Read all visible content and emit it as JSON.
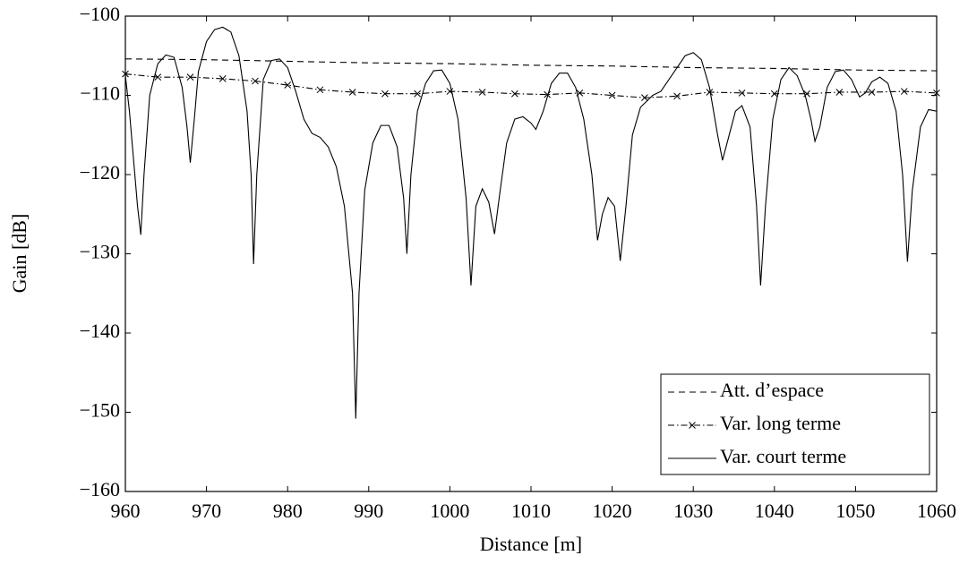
{
  "chart_data": {
    "type": "line",
    "xlabel": "Distance [m]",
    "ylabel": "Gain [dB]",
    "xlim": [
      960,
      1060
    ],
    "ylim": [
      -160,
      -100
    ],
    "xticks": [
      960,
      970,
      980,
      990,
      1000,
      1010,
      1020,
      1030,
      1040,
      1050,
      1060
    ],
    "yticks": [
      {
        "value": -160,
        "label": "−160"
      },
      {
        "value": -150,
        "label": "−150"
      },
      {
        "value": -140,
        "label": "−140"
      },
      {
        "value": -130,
        "label": "−130"
      },
      {
        "value": -120,
        "label": "−120"
      },
      {
        "value": -110,
        "label": "−110"
      },
      {
        "value": -100,
        "label": "−100"
      }
    ],
    "legend": "lower right",
    "series": [
      {
        "name": "Att. d’espace",
        "color": "#000000",
        "linestyle": "dashed",
        "x": [
          960,
          970,
          980,
          990,
          1000,
          1010,
          1020,
          1030,
          1040,
          1050,
          1060
        ],
        "values": [
          -105.4,
          -105.5,
          -105.7,
          -105.9,
          -106.0,
          -106.2,
          -106.3,
          -106.5,
          -106.6,
          -106.8,
          -106.9
        ]
      },
      {
        "name": "Var. long terme",
        "color": "#000000",
        "linestyle": "dashdot",
        "marker": "x",
        "x": [
          960,
          964,
          968,
          972,
          976,
          980,
          984,
          988,
          992,
          996,
          1000,
          1004,
          1008,
          1012,
          1016,
          1020,
          1024,
          1028,
          1032,
          1036,
          1040,
          1044,
          1048,
          1052,
          1056,
          1060
        ],
        "values": [
          -107.3,
          -107.7,
          -107.7,
          -107.9,
          -108.2,
          -108.7,
          -109.3,
          -109.6,
          -109.8,
          -109.8,
          -109.5,
          -109.6,
          -109.8,
          -109.9,
          -109.7,
          -110.0,
          -110.3,
          -110.1,
          -109.6,
          -109.7,
          -109.8,
          -109.8,
          -109.6,
          -109.6,
          -109.5,
          -109.7
        ]
      },
      {
        "name": "Var. court terme",
        "color": "#000000",
        "linestyle": "solid",
        "x": [
          960,
          960.5,
          961,
          961.5,
          961.9,
          962.3,
          963,
          964,
          965,
          966,
          967,
          967.6,
          968,
          968.5,
          969,
          970,
          971,
          972,
          973,
          974,
          975,
          975.5,
          975.8,
          976.2,
          977,
          978,
          979,
          980,
          981,
          982,
          983,
          984,
          985,
          986,
          987,
          988,
          988.4,
          988.8,
          989.5,
          990.5,
          991.5,
          992.5,
          993.5,
          994.3,
          994.7,
          995.2,
          996,
          997,
          998,
          999,
          1000,
          1001,
          1002,
          1002.6,
          1003.2,
          1004,
          1004.8,
          1005.5,
          1006.2,
          1007,
          1008,
          1009,
          1010,
          1010.6,
          1011.5,
          1012.5,
          1013.5,
          1014.5,
          1015.5,
          1016.5,
          1017.5,
          1018.2,
          1018.8,
          1019.5,
          1020.3,
          1021,
          1021.7,
          1022.5,
          1023.5,
          1025,
          1026,
          1027,
          1028,
          1029,
          1030,
          1031,
          1032,
          1033,
          1033.6,
          1034.3,
          1035.2,
          1036,
          1037,
          1037.8,
          1038.3,
          1038.9,
          1039.8,
          1040.8,
          1041.8,
          1042.8,
          1043.8,
          1044.5,
          1045,
          1045.6,
          1046.5,
          1047.5,
          1048.5,
          1049.5,
          1050.5,
          1051.2,
          1052,
          1053,
          1054,
          1055,
          1055.8,
          1056.4,
          1057,
          1058,
          1059,
          1060
        ],
        "values": [
          -107.5,
          -112,
          -118,
          -124,
          -127.6,
          -120,
          -110,
          -106,
          -104.9,
          -105.2,
          -109,
          -114,
          -118.5,
          -113,
          -107,
          -103.2,
          -101.7,
          -101.4,
          -102,
          -105,
          -112,
          -120,
          -131.3,
          -120,
          -108,
          -105.6,
          -105.4,
          -106.5,
          -109.5,
          -113,
          -114.8,
          -115.3,
          -116.5,
          -119,
          -124,
          -135,
          -150.8,
          -135,
          -122,
          -116,
          -113.8,
          -113.8,
          -116.5,
          -123,
          -130,
          -120,
          -112,
          -108.5,
          -106.9,
          -106.8,
          -108.5,
          -113,
          -123,
          -134,
          -124,
          -121.8,
          -123.5,
          -127.5,
          -122,
          -116,
          -113,
          -112.7,
          -113.5,
          -114.3,
          -112,
          -108.5,
          -107.2,
          -107.2,
          -109,
          -113,
          -120,
          -128.3,
          -125,
          -122.9,
          -124,
          -130.9,
          -124,
          -115,
          -111.5,
          -110,
          -109.5,
          -108,
          -106.5,
          -105,
          -104.6,
          -105.5,
          -109,
          -115,
          -118.2,
          -115.5,
          -112,
          -111.3,
          -114,
          -124,
          -134,
          -124,
          -113,
          -108,
          -106.5,
          -107.5,
          -110,
          -113,
          -115.8,
          -114,
          -109,
          -107,
          -106.8,
          -108,
          -110.2,
          -109.7,
          -108.3,
          -107.7,
          -108.5,
          -112,
          -120,
          -131,
          -122,
          -114,
          -111.8,
          -112
        ]
      }
    ]
  }
}
